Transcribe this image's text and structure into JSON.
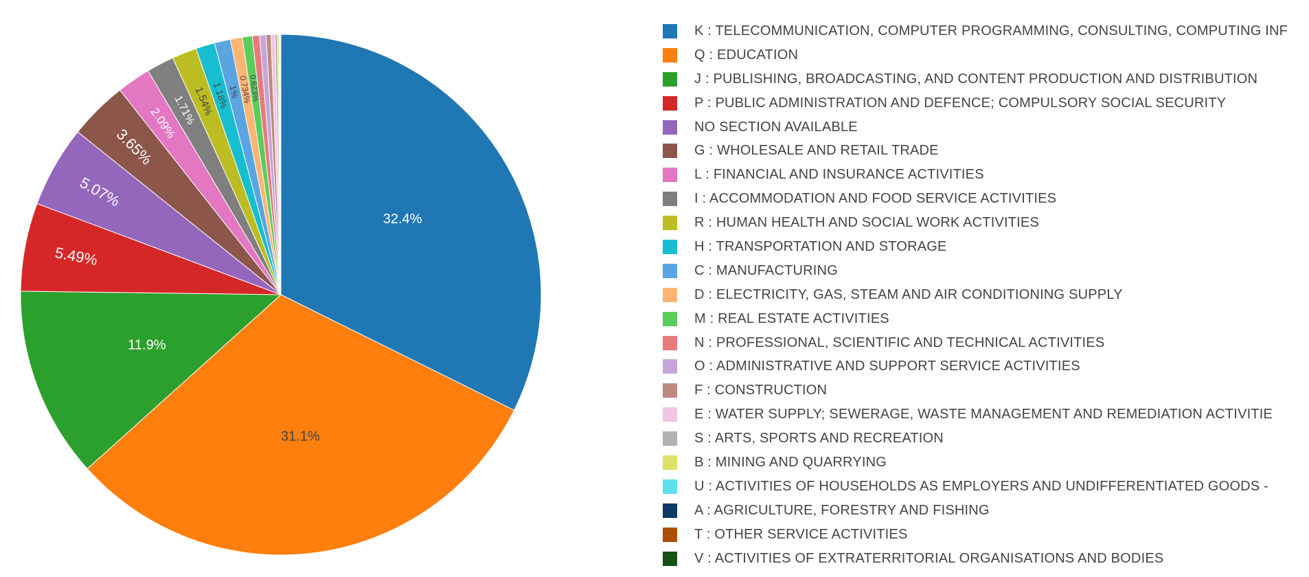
{
  "chart_data": {
    "type": "pie",
    "legend_position": "right",
    "sort": "descending",
    "direction": "clockwise",
    "start": "12 o'clock",
    "slices": [
      {
        "label": "K : TELECOMMUNICATION, COMPUTER PROGRAMMING, CONSULTING, COMPUTING INF",
        "value": 32.4,
        "text": "32.4%",
        "color": "#1f77b4"
      },
      {
        "label": "Q : EDUCATION",
        "value": 31.1,
        "text": "31.1%",
        "color": "#ff7f0e"
      },
      {
        "label": "J : PUBLISHING, BROADCASTING, AND CONTENT PRODUCTION AND DISTRIBUTION",
        "value": 11.9,
        "text": "11.9%",
        "color": "#2ca02c"
      },
      {
        "label": "P : PUBLIC ADMINISTRATION AND DEFENCE; COMPULSORY SOCIAL SECURITY",
        "value": 5.49,
        "text": "5.49%",
        "color": "#d62728"
      },
      {
        "label": "NO SECTION AVAILABLE",
        "value": 5.07,
        "text": "5.07%",
        "color": "#9467bd"
      },
      {
        "label": "G : WHOLESALE AND RETAIL TRADE",
        "value": 3.65,
        "text": "3.65%",
        "color": "#8c564b"
      },
      {
        "label": "L : FINANCIAL AND INSURANCE ACTIVITIES",
        "value": 2.09,
        "text": "2.09%",
        "color": "#e377c2"
      },
      {
        "label": "I : ACCOMMODATION AND FOOD SERVICE ACTIVITIES",
        "value": 1.71,
        "text": "1.71%",
        "color": "#7f7f7f"
      },
      {
        "label": "R : HUMAN HEALTH AND SOCIAL WORK ACTIVITIES",
        "value": 1.54,
        "text": "1.54%",
        "color": "#bcbd22"
      },
      {
        "label": "H : TRANSPORTATION AND STORAGE",
        "value": 1.18,
        "text": "1.18%",
        "color": "#17becf"
      },
      {
        "label": "C : MANUFACTURING",
        "value": 1.0,
        "text": "1%",
        "color": "#5aa5e0"
      },
      {
        "label": "D : ELECTRICITY, GAS, STEAM AND AIR CONDITIONING SUPPLY",
        "value": 0.734,
        "text": "0.734%",
        "color": "#ffb574"
      },
      {
        "label": "M : REAL ESTATE ACTIVITIES",
        "value": 0.623,
        "text": "0.623%",
        "color": "#5ccc5c"
      },
      {
        "label": "N : PROFESSIONAL, SCIENTIFIC AND TECHNICAL ACTIVITIES",
        "value": 0.45,
        "text": "",
        "color": "#e67b7c"
      },
      {
        "label": "O : ADMINISTRATIVE AND SUPPORT SERVICE ACTIVITIES",
        "value": 0.4,
        "text": "",
        "color": "#c5a6db"
      },
      {
        "label": "F : CONSTRUCTION",
        "value": 0.3,
        "text": "",
        "color": "#bd8a80"
      },
      {
        "label": "E : WATER SUPPLY; SEWERAGE, WASTE MANAGEMENT AND REMEDIATION ACTIVITIE",
        "value": 0.25,
        "text": "",
        "color": "#f2c4e5"
      },
      {
        "label": "S : ARTS, SPORTS AND RECREATION",
        "value": 0.15,
        "text": "",
        "color": "#b2b2b2"
      },
      {
        "label": "B : MINING AND QUARRYING",
        "value": 0.1,
        "text": "",
        "color": "#dfe06a"
      },
      {
        "label": "U : ACTIVITIES OF HOUSEHOLDS AS EMPLOYERS AND UNDIFFERENTIATED GOODS -",
        "value": 0.05,
        "text": "",
        "color": "#5ee0ec"
      },
      {
        "label": "A : AGRICULTURE, FORESTRY AND FISHING",
        "value": 0.03,
        "text": "",
        "color": "#0d3a63"
      },
      {
        "label": "T : OTHER SERVICE ACTIVITIES",
        "value": 0.02,
        "text": "",
        "color": "#a94f07"
      },
      {
        "label": "V : ACTIVITIES OF EXTRATERRITORIAL ORGANISATIONS AND BODIES",
        "value": 0.01,
        "text": "",
        "color": "#175017"
      }
    ]
  }
}
